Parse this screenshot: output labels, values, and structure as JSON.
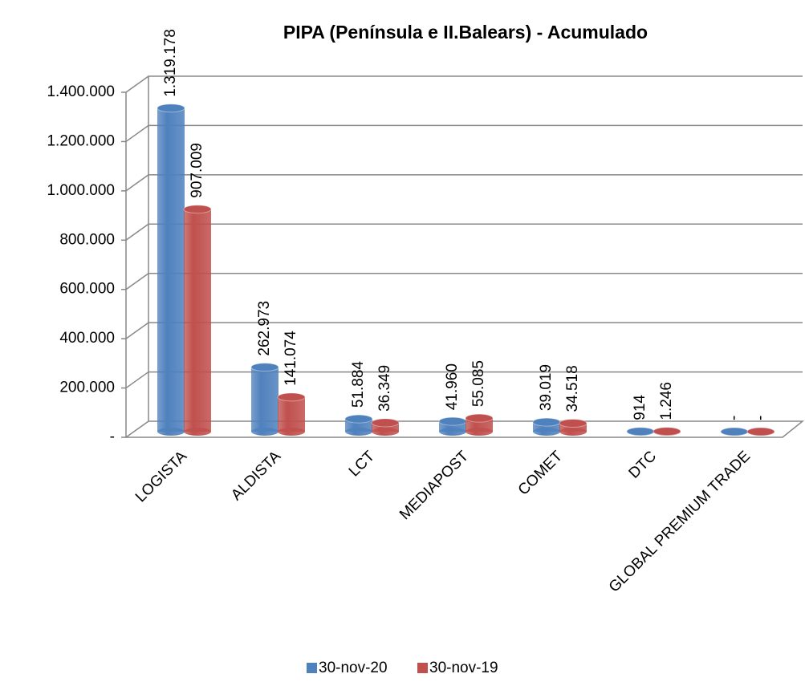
{
  "chart_data": {
    "type": "bar3d",
    "title": "PIPA  (Península e II.Balears) - Acumulado",
    "categories": [
      "LOGISTA",
      "ALDISTA",
      "LCT",
      "MEDIAPOST",
      "COMET",
      "DTC",
      "GLOBAL PREMIUM TRADE"
    ],
    "series": [
      {
        "name": "30-nov-20",
        "color": "#4f81bd",
        "values": [
          1319178,
          262973,
          51884,
          41960,
          39019,
          914,
          0
        ],
        "value_labels": [
          "1.319.178",
          "262.973",
          "51.884",
          "41.960",
          "39.019",
          "914",
          "-"
        ]
      },
      {
        "name": "30-nov-19",
        "color": "#c0504d",
        "values": [
          907009,
          141074,
          36349,
          55085,
          34518,
          1246,
          0
        ],
        "value_labels": [
          "907.009",
          "141.074",
          "36.349",
          "55.085",
          "34.518",
          "1.246",
          "-"
        ]
      }
    ],
    "ylim": [
      0,
      1400000
    ],
    "yticks": [
      {
        "value": 0,
        "label": "-"
      },
      {
        "value": 200000,
        "label": "200.000"
      },
      {
        "value": 400000,
        "label": "400.000"
      },
      {
        "value": 600000,
        "label": "600.000"
      },
      {
        "value": 800000,
        "label": "800.000"
      },
      {
        "value": 1000000,
        "label": "1.000.000"
      },
      {
        "value": 1200000,
        "label": "1.200.000"
      },
      {
        "value": 1400000,
        "label": "1.400.000"
      }
    ],
    "grid": true,
    "legend": "bottom"
  }
}
